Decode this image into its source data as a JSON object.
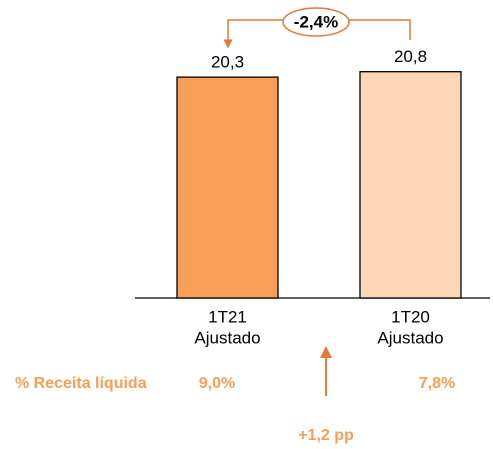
{
  "chart_data": {
    "type": "bar",
    "categories": [
      [
        "1T21",
        "Ajustado"
      ],
      [
        "1T20",
        "Ajustado"
      ]
    ],
    "values": [
      20.3,
      20.8
    ],
    "value_labels": [
      "20,3",
      "20,8"
    ],
    "colors": [
      "#f79f56",
      "#fdd6b5"
    ],
    "ylim": [
      0,
      25
    ],
    "annotations": {
      "change": "-2,4%",
      "row_label": "% Receita líquida",
      "row_values": [
        "9,0%",
        "7,8%"
      ],
      "difference": "+1,2 pp"
    }
  }
}
